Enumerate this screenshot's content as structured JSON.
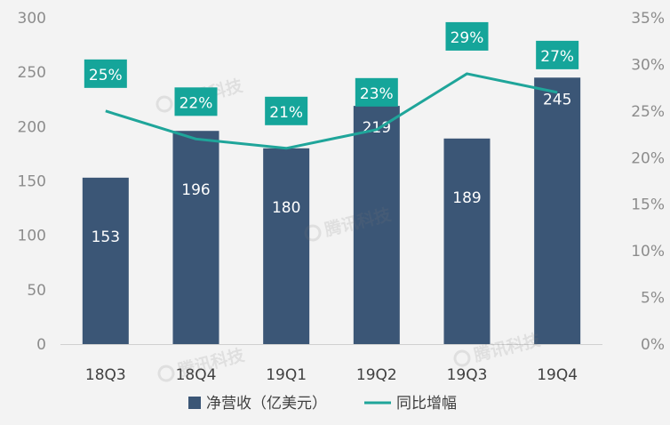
{
  "chart_data": {
    "type": "bar",
    "categories": [
      "18Q3",
      "18Q4",
      "19Q1",
      "19Q2",
      "19Q3",
      "19Q4"
    ],
    "series": [
      {
        "name": "净营收（亿美元）",
        "type": "bar",
        "axis": "left",
        "values": [
          153,
          196,
          180,
          219,
          189,
          245
        ],
        "labels": [
          "153",
          "196",
          "180",
          "219",
          "189",
          "245"
        ]
      },
      {
        "name": "同比增幅",
        "type": "line",
        "axis": "right",
        "values": [
          25,
          22,
          21,
          23,
          29,
          27
        ],
        "labels": [
          "25%",
          "22%",
          "21%",
          "23%",
          "29%",
          "27%"
        ]
      }
    ],
    "ylim_left": [
      0,
      300
    ],
    "yticks_left": [
      "0",
      "50",
      "100",
      "150",
      "200",
      "250",
      "300"
    ],
    "ylim_right": [
      0,
      35
    ],
    "yticks_right": [
      "0%",
      "5%",
      "10%",
      "15%",
      "20%",
      "25%",
      "30%",
      "35%"
    ],
    "title": "",
    "xlabel": "",
    "ylabel": "",
    "grid": false,
    "legend": "bottom",
    "colors": {
      "bar": "#3b5676",
      "line": "#1fa59a",
      "label_box": "#15a59a",
      "background": "#f3f3f3"
    }
  },
  "watermark": "腾讯科技"
}
